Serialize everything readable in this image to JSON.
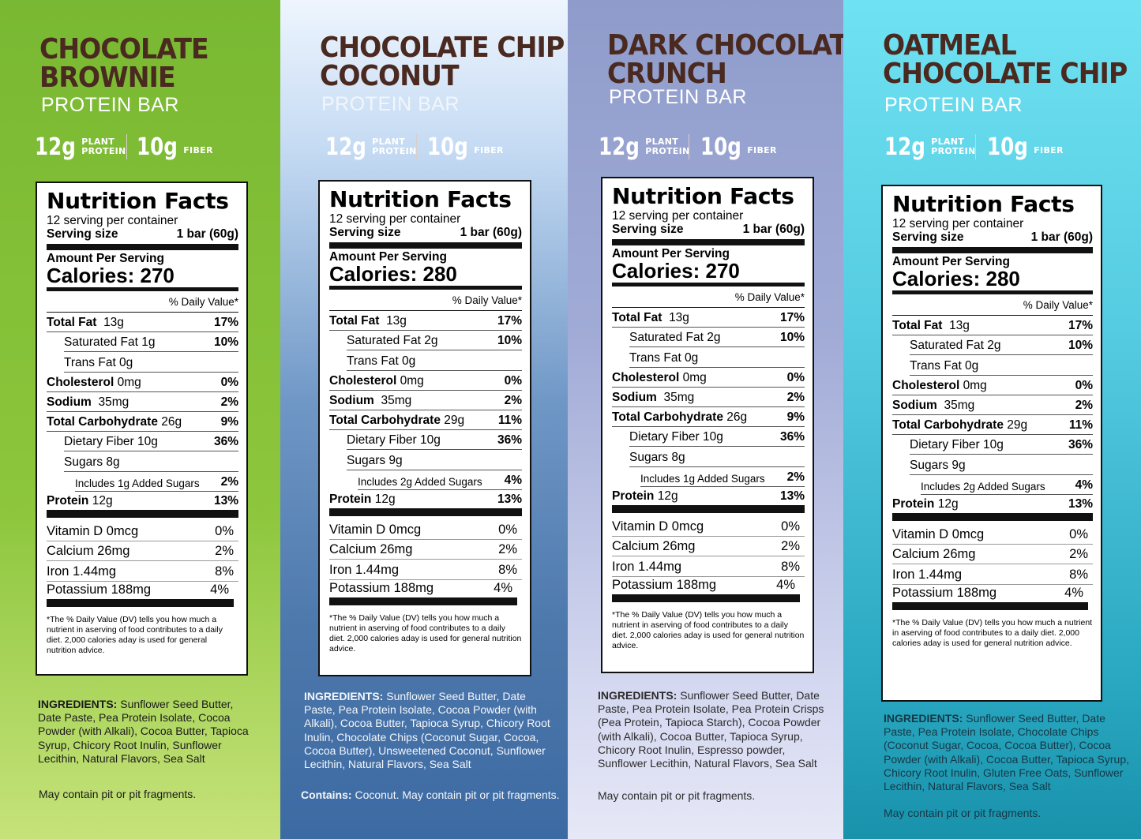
{
  "stats": {
    "protein_value": "12g",
    "protein_label_1": "PLANT",
    "protein_label_2": "PROTEIN",
    "fiber_value": "10g",
    "fiber_label": "FIBER"
  },
  "panel_labels": {
    "title": "Nutrition Facts",
    "servings": "12 serving per container",
    "serving_size_label": "Serving size",
    "serving_size_value": "1 bar (60g)",
    "amount_per_serving": "Amount Per Serving",
    "daily_value_header": "% Daily Value*",
    "footnote": "*The % Daily Value (DV) tells you how much a nutrient in aserving of food contributes to a daily diet. 2,000 calories aday is used for general nutrition advice."
  },
  "products": [
    {
      "title_line1": "CHOCOLATE",
      "title_line2": "BROWNIE",
      "subtitle": "PROTEIN BAR",
      "calories": "Calories: 270",
      "total_fat": {
        "label": "Total Fat",
        "amount": "13g",
        "dv": "17%"
      },
      "saturated_fat": {
        "label": "Saturated Fat 1g",
        "dv": "10%"
      },
      "trans_fat": {
        "label": "Trans Fat 0g"
      },
      "cholesterol": {
        "label": "Cholesterol",
        "amount": "0mg",
        "dv": "0%"
      },
      "sodium": {
        "label": "Sodium",
        "amount": "35mg",
        "dv": "2%"
      },
      "total_carb": {
        "label": "Total Carbohydrate",
        "amount": "26g",
        "dv": "9%"
      },
      "dietary_fiber": {
        "label": "Dietary Fiber 10g",
        "dv": "36%"
      },
      "sugars": {
        "label": "Sugars 8g"
      },
      "added_sugars": {
        "label": "Includes 1g Added Sugars",
        "dv": "2%"
      },
      "protein": {
        "label": "Protein",
        "amount": "12g",
        "dv": "13%"
      },
      "vitamin_d": {
        "label": "Vitamin D 0mcg",
        "dv": "0%"
      },
      "calcium": {
        "label": "Calcium 26mg",
        "dv": "2%"
      },
      "iron": {
        "label": "Iron 1.44mg",
        "dv": "8%"
      },
      "potassium": {
        "label": "Potassium 188mg",
        "dv": "4%"
      },
      "ingredients_label": "INGREDIENTS:",
      "ingredients_text": "Sunflower Seed Butter, Date Paste, Pea Protein Isolate, Cocoa Powder (with Alkali), Cocoa Butter, Tapioca Syrup, Chicory Root Inulin, Sunflower Lecithin, Natural Flavors, Sea Salt",
      "contains_label": "",
      "note": "May contain pit or pit fragments."
    },
    {
      "title_line1": "CHOCOLATE CHIP",
      "title_line2": "COCONUT",
      "subtitle": "PROTEIN BAR",
      "calories": "Calories: 280",
      "total_fat": {
        "label": "Total Fat",
        "amount": "13g",
        "dv": "17%"
      },
      "saturated_fat": {
        "label": "Saturated Fat 2g",
        "dv": "10%"
      },
      "trans_fat": {
        "label": "Trans Fat 0g"
      },
      "cholesterol": {
        "label": "Cholesterol",
        "amount": "0mg",
        "dv": "0%"
      },
      "sodium": {
        "label": "Sodium",
        "amount": "35mg",
        "dv": "2%"
      },
      "total_carb": {
        "label": "Total Carbohydrate",
        "amount": "29g",
        "dv": "11%"
      },
      "dietary_fiber": {
        "label": "Dietary Fiber 10g",
        "dv": "36%"
      },
      "sugars": {
        "label": "Sugars 9g"
      },
      "added_sugars": {
        "label": "Includes 2g Added Sugars",
        "dv": "4%"
      },
      "protein": {
        "label": "Protein",
        "amount": "12g",
        "dv": "13%"
      },
      "vitamin_d": {
        "label": "Vitamin D 0mcg",
        "dv": "0%"
      },
      "calcium": {
        "label": "Calcium 26mg",
        "dv": "2%"
      },
      "iron": {
        "label": "Iron 1.44mg",
        "dv": "8%"
      },
      "potassium": {
        "label": "Potassium 188mg",
        "dv": "4%"
      },
      "ingredients_label": "INGREDIENTS:",
      "ingredients_text": "Sunflower Seed Butter, Date Paste, Pea Protein Isolate, Cocoa Powder (with Alkali), Cocoa Butter, Tapioca Syrup, Chicory Root Inulin, Chocolate Chips (Coconut Sugar, Cocoa, Cocoa Butter), Unsweetened Coconut, Sunflower Lecithin, Natural Flavors, Sea Salt",
      "contains_label": "Contains:",
      "note": "Coconut. May contain pit or pit fragments."
    },
    {
      "title_line1": "DARK CHOCOLATE",
      "title_line2": "CRUNCH",
      "subtitle": "PROTEIN BAR",
      "calories": "Calories: 270",
      "total_fat": {
        "label": "Total Fat",
        "amount": "13g",
        "dv": "17%"
      },
      "saturated_fat": {
        "label": "Saturated Fat 2g",
        "dv": "10%"
      },
      "trans_fat": {
        "label": "Trans Fat 0g"
      },
      "cholesterol": {
        "label": "Cholesterol",
        "amount": "0mg",
        "dv": "0%"
      },
      "sodium": {
        "label": "Sodium",
        "amount": "35mg",
        "dv": "2%"
      },
      "total_carb": {
        "label": "Total Carbohydrate",
        "amount": "26g",
        "dv": "9%"
      },
      "dietary_fiber": {
        "label": "Dietary Fiber 10g",
        "dv": "36%"
      },
      "sugars": {
        "label": "Sugars 8g"
      },
      "added_sugars": {
        "label": "Includes 1g Added Sugars",
        "dv": "2%"
      },
      "protein": {
        "label": "Protein",
        "amount": "12g",
        "dv": "13%"
      },
      "vitamin_d": {
        "label": "Vitamin D 0mcg",
        "dv": "0%"
      },
      "calcium": {
        "label": "Calcium 26mg",
        "dv": "2%"
      },
      "iron": {
        "label": "Iron 1.44mg",
        "dv": "8%"
      },
      "potassium": {
        "label": "Potassium 188mg",
        "dv": "4%"
      },
      "ingredients_label": "INGREDIENTS:",
      "ingredients_text": "Sunflower Seed Butter, Date Paste, Pea Protein Isolate, Pea Protein Crisps (Pea Protein, Tapioca Starch), Cocoa Powder (with Alkali), Cocoa Butter, Tapioca Syrup, Chicory Root Inulin, Espresso powder, Sunflower Lecithin, Natural Flavors, Sea Salt",
      "contains_label": "",
      "note": "May contain pit or pit fragments."
    },
    {
      "title_line1": "OATMEAL",
      "title_line2": "CHOCOLATE CHIP",
      "subtitle": "PROTEIN BAR",
      "calories": "Calories: 280",
      "total_fat": {
        "label": "Total Fat",
        "amount": "13g",
        "dv": "17%"
      },
      "saturated_fat": {
        "label": "Saturated Fat 2g",
        "dv": "10%"
      },
      "trans_fat": {
        "label": "Trans Fat 0g"
      },
      "cholesterol": {
        "label": "Cholesterol",
        "amount": "0mg",
        "dv": "0%"
      },
      "sodium": {
        "label": "Sodium",
        "amount": "35mg",
        "dv": "2%"
      },
      "total_carb": {
        "label": "Total Carbohydrate",
        "amount": "29g",
        "dv": "11%"
      },
      "dietary_fiber": {
        "label": "Dietary Fiber 10g",
        "dv": "36%"
      },
      "sugars": {
        "label": "Sugars 9g"
      },
      "added_sugars": {
        "label": "Includes 2g Added Sugars",
        "dv": "4%"
      },
      "protein": {
        "label": "Protein",
        "amount": "12g",
        "dv": "13%"
      },
      "vitamin_d": {
        "label": "Vitamin D 0mcg",
        "dv": "0%"
      },
      "calcium": {
        "label": "Calcium 26mg",
        "dv": "2%"
      },
      "iron": {
        "label": "Iron 1.44mg",
        "dv": "8%"
      },
      "potassium": {
        "label": "Potassium 188mg",
        "dv": "4%"
      },
      "ingredients_label": "INGREDIENTS:",
      "ingredients_text": "Sunflower Seed Butter, Date Paste, Pea Protein Isolate, Chocolate Chips (Coconut Sugar, Cocoa, Cocoa Butter), Cocoa Powder (with Alkali), Cocoa Butter, Tapioca Syrup, Chicory Root Inulin, Gluten Free Oats, Sunflower Lecithin, Natural Flavors, Sea Salt",
      "contains_label": "",
      "note": "May contain pit or pit fragments."
    }
  ]
}
